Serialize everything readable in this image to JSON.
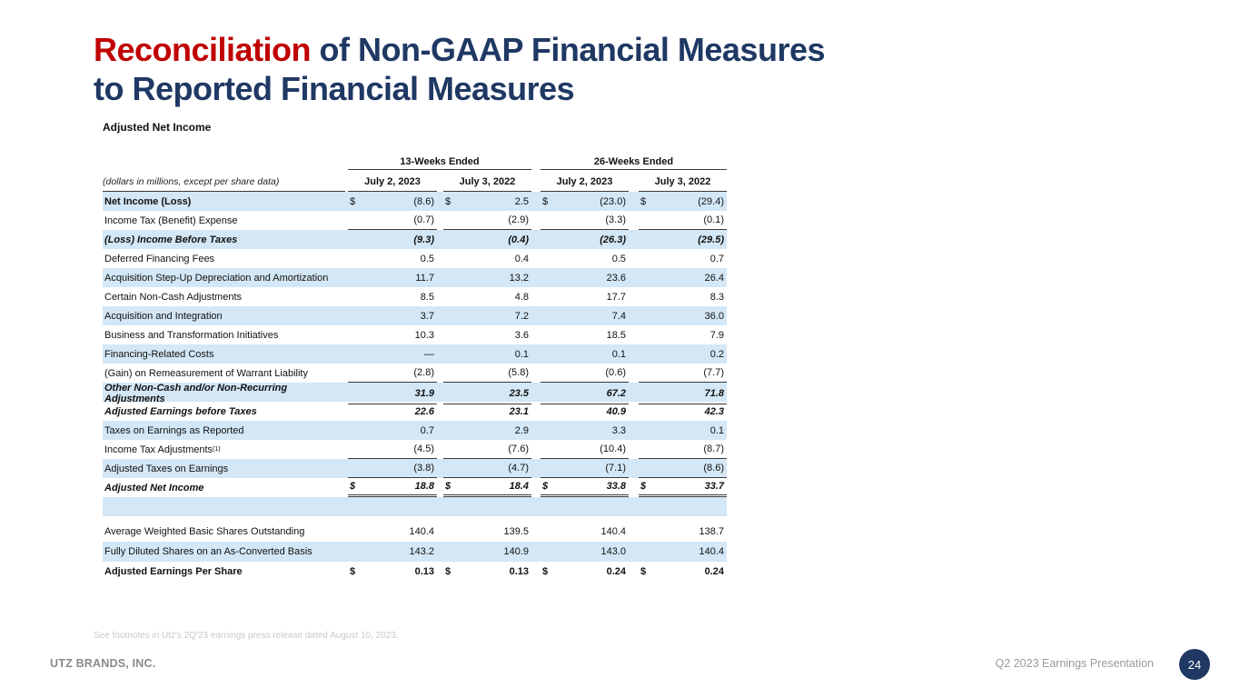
{
  "slide_title": {
    "highlight": "Reconciliation",
    "rest": " of Non-GAAP Financial Measures",
    "line2": "to Reported Financial Measures"
  },
  "section_label": "Adjusted Net Income",
  "table": {
    "caption": "(dollars in millions, except per share data)",
    "group_headers": [
      "13-Weeks Ended",
      "26-Weeks Ended"
    ],
    "column_headers": [
      "July 2, 2023",
      "July 3, 2022",
      "July 2, 2023",
      "July 3, 2022"
    ],
    "rows": [
      {
        "label": "Net Income (Loss)",
        "dollar": true,
        "em": "label-bold",
        "shaded": true,
        "values": [
          "(8.6)",
          "2.5",
          "(23.0)",
          "(29.4)"
        ]
      },
      {
        "label": "Income Tax (Benefit) Expense",
        "rule_below": true,
        "values": [
          "(0.7)",
          "(2.9)",
          "(3.3)",
          "(0.1)"
        ]
      },
      {
        "label": "(Loss) Income Before Taxes",
        "em": "bold-italic",
        "shaded": true,
        "values": [
          "(9.3)",
          "(0.4)",
          "(26.3)",
          "(29.5)"
        ]
      },
      {
        "label": "Deferred Financing Fees",
        "values": [
          "0.5",
          "0.4",
          "0.5",
          "0.7"
        ]
      },
      {
        "label": "Acquisition Step-Up Depreciation and Amortization",
        "shaded": true,
        "values": [
          "11.7",
          "13.2",
          "23.6",
          "26.4"
        ]
      },
      {
        "label": "Certain Non-Cash Adjustments",
        "values": [
          "8.5",
          "4.8",
          "17.7",
          "8.3"
        ]
      },
      {
        "label": "Acquisition and Integration",
        "shaded": true,
        "values": [
          "3.7",
          "7.2",
          "7.4",
          "36.0"
        ]
      },
      {
        "label": "Business and Transformation Initiatives",
        "values": [
          "10.3",
          "3.6",
          "18.5",
          "7.9"
        ]
      },
      {
        "label": "Financing-Related Costs",
        "shaded": true,
        "values": [
          "—",
          "0.1",
          "0.1",
          "0.2"
        ]
      },
      {
        "label": "(Gain) on Remeasurement of Warrant Liability",
        "rule_below": true,
        "values": [
          "(2.8)",
          "(5.8)",
          "(0.6)",
          "(7.7)"
        ]
      },
      {
        "label": "Other Non-Cash and/or Non-Recurring Adjustments",
        "em": "bold-italic",
        "shaded": true,
        "rule_below": true,
        "values": [
          "31.9",
          "23.5",
          "67.2",
          "71.8"
        ]
      },
      {
        "label": "Adjusted Earnings before Taxes",
        "em": "bold-italic",
        "values": [
          "22.6",
          "23.1",
          "40.9",
          "42.3"
        ]
      },
      {
        "label": "Taxes on Earnings as Reported",
        "shaded": true,
        "values": [
          "0.7",
          "2.9",
          "3.3",
          "0.1"
        ]
      },
      {
        "label": "Income Tax Adjustments",
        "sup": "(1)",
        "rule_below": true,
        "values": [
          "(4.5)",
          "(7.6)",
          "(10.4)",
          "(8.7)"
        ]
      },
      {
        "label": "Adjusted Taxes on Earnings",
        "shaded": true,
        "rule_below": true,
        "values": [
          "(3.8)",
          "(4.7)",
          "(7.1)",
          "(8.6)"
        ]
      },
      {
        "label": "Adjusted Net Income",
        "dollar": true,
        "em": "bold-italic",
        "dbl_below": true,
        "values": [
          "18.8",
          "18.4",
          "33.8",
          "33.7"
        ]
      },
      {
        "label": "",
        "shaded": true,
        "values": [
          "",
          "",
          "",
          ""
        ]
      },
      {
        "type": "spacer"
      },
      {
        "label": "Average Weighted Basic Shares Outstanding",
        "tall": true,
        "values": [
          "140.4",
          "139.5",
          "140.4",
          "138.7"
        ]
      },
      {
        "label": "Fully Diluted Shares on an As-Converted Basis",
        "tall": true,
        "shaded": true,
        "values": [
          "143.2",
          "140.9",
          "143.0",
          "140.4"
        ]
      },
      {
        "label": "Adjusted Earnings Per Share",
        "dollar": true,
        "em": "bold",
        "tall": true,
        "values": [
          "0.13",
          "0.13",
          "0.24",
          "0.24"
        ]
      }
    ]
  },
  "footnote": "See footnotes  in Utz's 2Q'23 earnings press release  dated August 10, 2023.",
  "footer": {
    "company": "UTZ BRANDS, INC.",
    "presentation": "Q2 2023 Earnings Presentation",
    "page_number": "24"
  },
  "colors": {
    "accent_red": "#C00000",
    "navy": "#1F3864",
    "row_highlight_blue": "#D3E7F6",
    "rule_line": "#3a3a3a",
    "footer_gray": "#8a8a8a"
  }
}
